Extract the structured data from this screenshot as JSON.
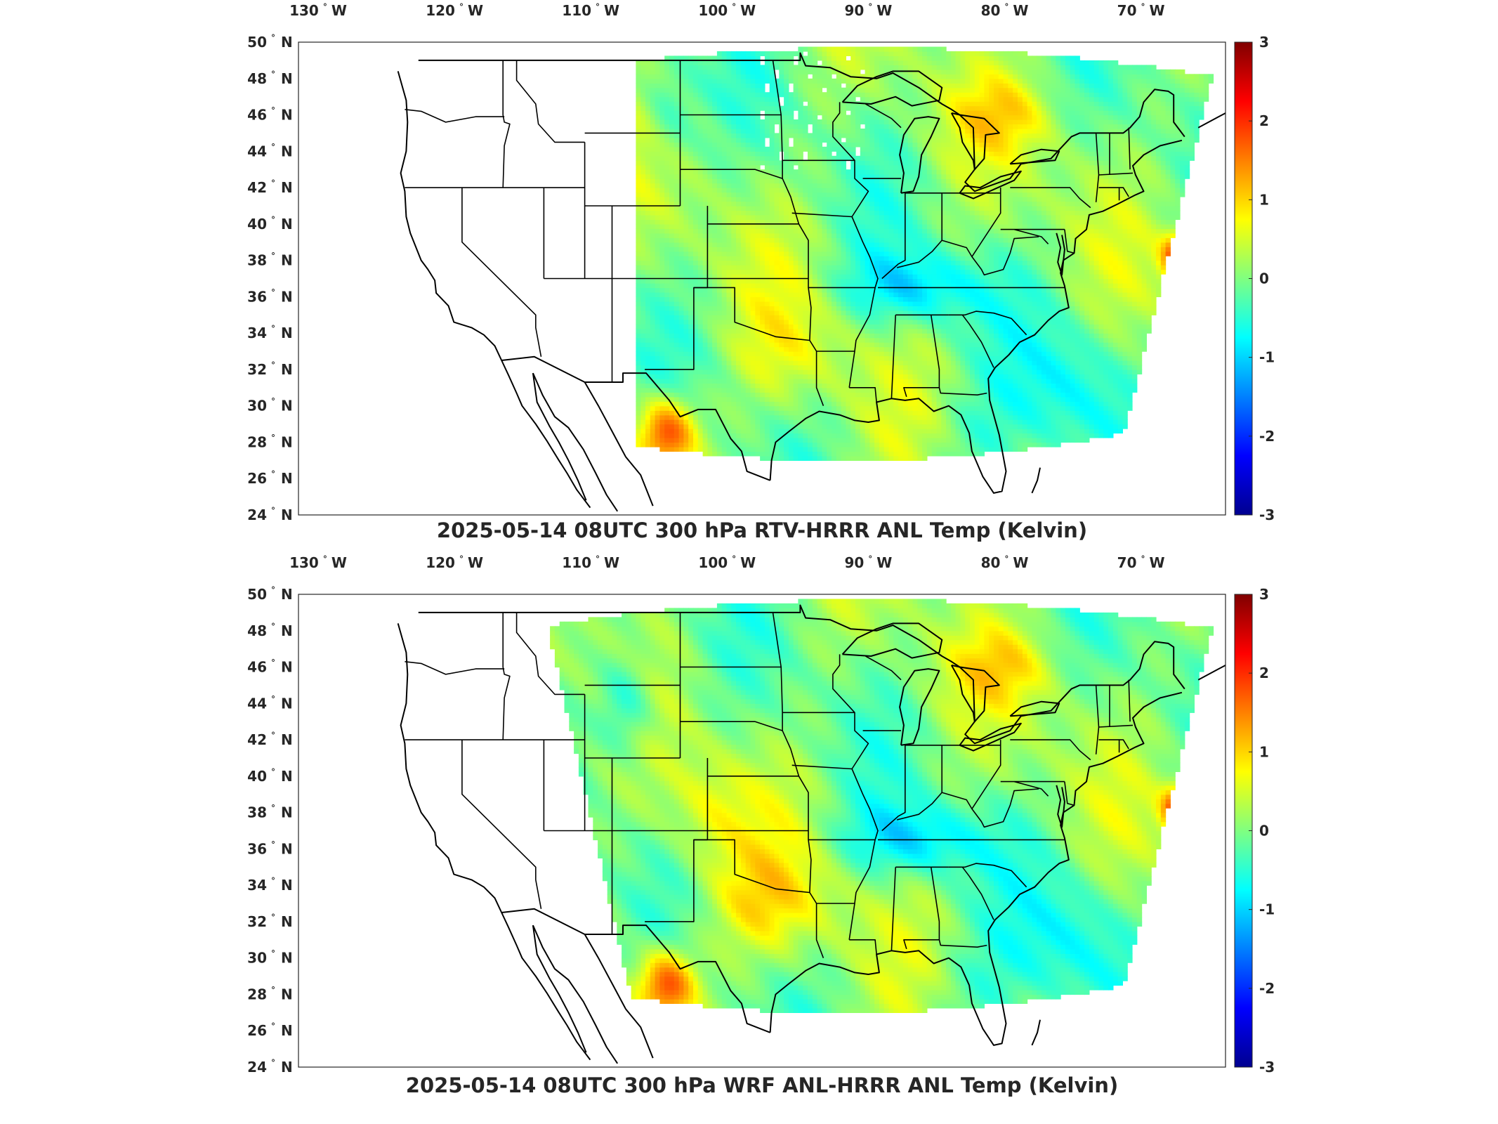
{
  "panels": [
    {
      "title": "2025-05-14 08UTC 300 hPa RTV-HRRR ANL Temp (Kelvin)",
      "field": "rtv"
    },
    {
      "title": "2025-05-14 08UTC 300 hPa WRF ANL-HRRR ANL Temp (Kelvin)",
      "field": "wrf"
    }
  ],
  "axes": {
    "lon_ticks": [
      {
        "value": -130,
        "label": "130",
        "hemi": "W"
      },
      {
        "value": -120,
        "label": "120",
        "hemi": "W"
      },
      {
        "value": -110,
        "label": "110",
        "hemi": "W"
      },
      {
        "value": -100,
        "label": "100",
        "hemi": "W"
      },
      {
        "value": -90,
        "label": "90",
        "hemi": "W"
      },
      {
        "value": -80,
        "label": "80",
        "hemi": "W"
      },
      {
        "value": -70,
        "label": "70",
        "hemi": "W"
      }
    ],
    "lat_ticks": [
      {
        "value": 50,
        "label": "50",
        "hemi": "N"
      },
      {
        "value": 48,
        "label": "48",
        "hemi": "N"
      },
      {
        "value": 46,
        "label": "46",
        "hemi": "N"
      },
      {
        "value": 44,
        "label": "44",
        "hemi": "N"
      },
      {
        "value": 42,
        "label": "42",
        "hemi": "N"
      },
      {
        "value": 40,
        "label": "40",
        "hemi": "N"
      },
      {
        "value": 38,
        "label": "38",
        "hemi": "N"
      },
      {
        "value": 36,
        "label": "36",
        "hemi": "N"
      },
      {
        "value": 34,
        "label": "34",
        "hemi": "N"
      },
      {
        "value": 32,
        "label": "32",
        "hemi": "N"
      },
      {
        "value": 30,
        "label": "30",
        "hemi": "N"
      },
      {
        "value": 28,
        "label": "28",
        "hemi": "N"
      },
      {
        "value": 26,
        "label": "26",
        "hemi": "N"
      },
      {
        "value": 24,
        "label": "24",
        "hemi": "N"
      }
    ],
    "degree_symbol": "°"
  },
  "colorbar": {
    "colormap": "jet",
    "min": -3,
    "max": 3,
    "ticks": [
      "3",
      "2",
      "1",
      "0",
      "-1",
      "-2",
      "-3"
    ],
    "colors": [
      "#00008f",
      "#0000ff",
      "#0080ff",
      "#00ffff",
      "#80ff80",
      "#ffff00",
      "#ff8000",
      "#ff0000",
      "#800000"
    ]
  },
  "field_colors": {
    "cyan": "#38d8e8",
    "aqua_green": "#6ae6a8",
    "green": "#9ef080",
    "yellow_green": "#c8f060",
    "yellow": "#e8f040",
    "orange": "#f09030",
    "red": "#d83020",
    "blue": "#2a9cf0",
    "missing": "#ffffff"
  }
}
